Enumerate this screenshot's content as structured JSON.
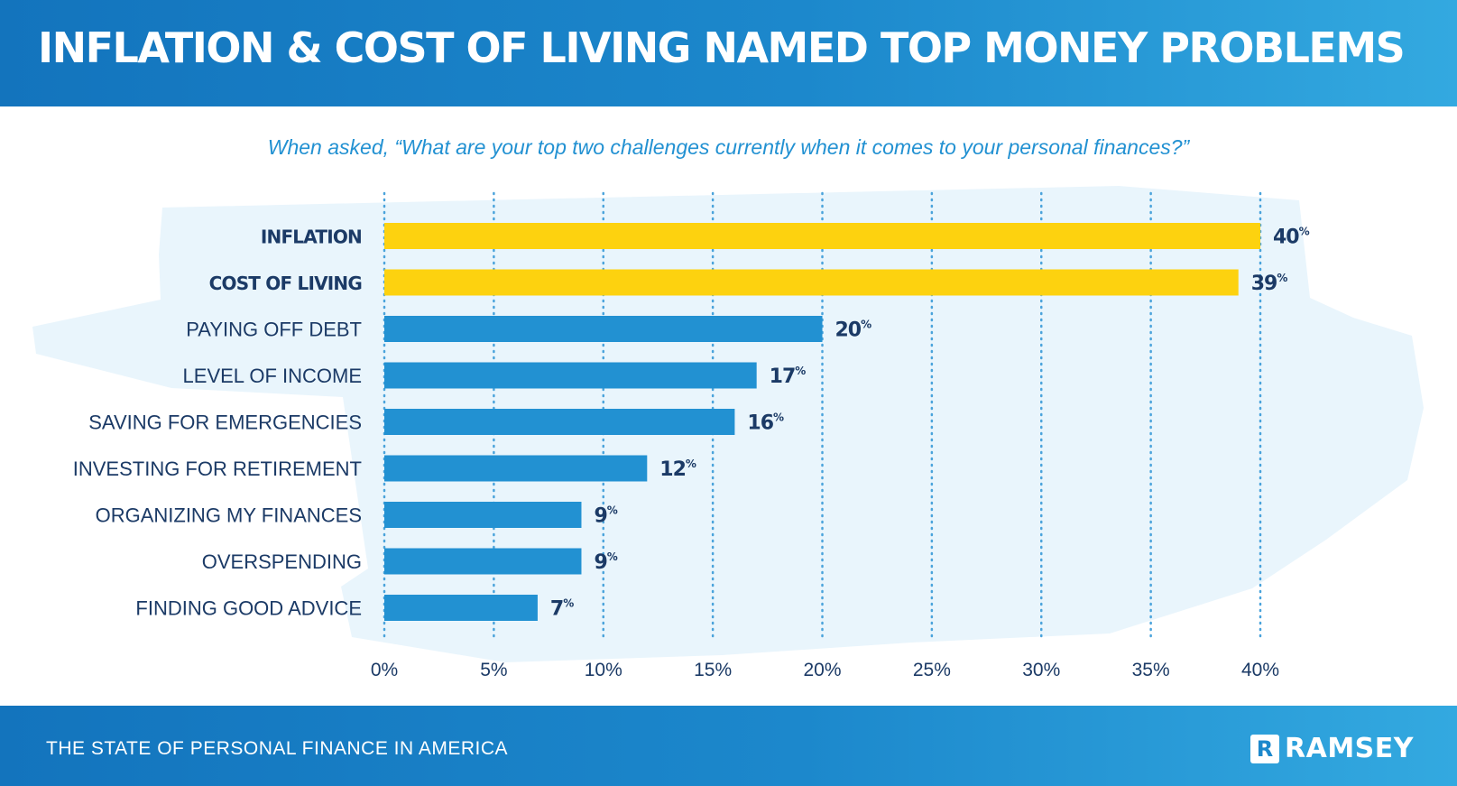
{
  "title": "INFLATION & COST OF LIVING NAMED TOP MONEY PROBLEMS",
  "footer": "THE STATE OF PERSONAL FINANCE IN AMERICA",
  "logo": {
    "mark": "R",
    "text": "RAMSEY"
  },
  "colors": {
    "highlight": "#fdd20f",
    "bar": "#2291d2",
    "text": "#1b3a66",
    "band": "#1c88cc",
    "grid": "#4aa3db"
  },
  "chart_data": {
    "type": "bar",
    "orientation": "horizontal",
    "subtitle": "When asked, “What are your top two challenges currently when it comes to your personal finances?”",
    "categories": [
      "INFLATION",
      "COST OF LIVING",
      "PAYING OFF DEBT",
      "LEVEL OF INCOME",
      "SAVING FOR EMERGENCIES",
      "INVESTING FOR RETIREMENT",
      "ORGANIZING MY FINANCES",
      "OVERSPENDING",
      "FINDING GOOD ADVICE"
    ],
    "values": [
      40,
      39,
      20,
      17,
      16,
      12,
      9,
      9,
      7
    ],
    "highlighted": [
      true,
      true,
      false,
      false,
      false,
      false,
      false,
      false,
      false
    ],
    "value_suffix": "%",
    "xlim": [
      0,
      40
    ],
    "xticks": [
      0,
      5,
      10,
      15,
      20,
      25,
      30,
      35,
      40
    ],
    "xtick_labels": [
      "0%",
      "5%",
      "10%",
      "15%",
      "20%",
      "25%",
      "30%",
      "35%",
      "40%"
    ],
    "grid": "vertical dotted"
  }
}
